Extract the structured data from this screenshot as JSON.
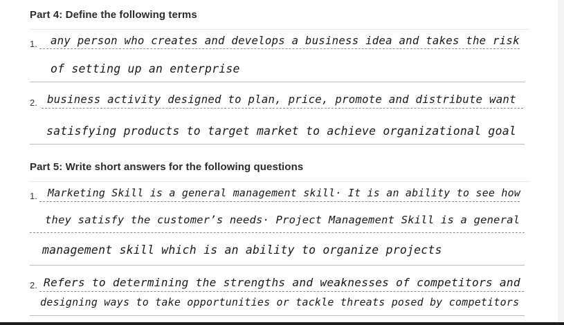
{
  "part4": {
    "heading": "Part 4: Define the following terms",
    "items": [
      {
        "number": "1.",
        "lines": [
          "any person who creates and develops a business idea and takes the risk",
          "of setting up an enterprise"
        ]
      },
      {
        "number": "2.",
        "lines": [
          "business activity designed to plan, price, promote and distribute want",
          "satisfying products to target market to achieve organizational goal"
        ]
      }
    ]
  },
  "part5": {
    "heading": "Part 5: Write short answers for the following questions",
    "items": [
      {
        "number": "1.",
        "lines": [
          "Marketing Skill is a general management skill· It is an ability to see how",
          "they satisfy the customer’s needs· Project Management Skill is a general",
          "management skill which is an ability to organize projects"
        ]
      },
      {
        "number": "2.",
        "lines": [
          "Refers to determining the strengths and weaknesses of competitors and",
          "designing ways to take opportunities or tackle threats posed by competitors"
        ]
      }
    ]
  }
}
